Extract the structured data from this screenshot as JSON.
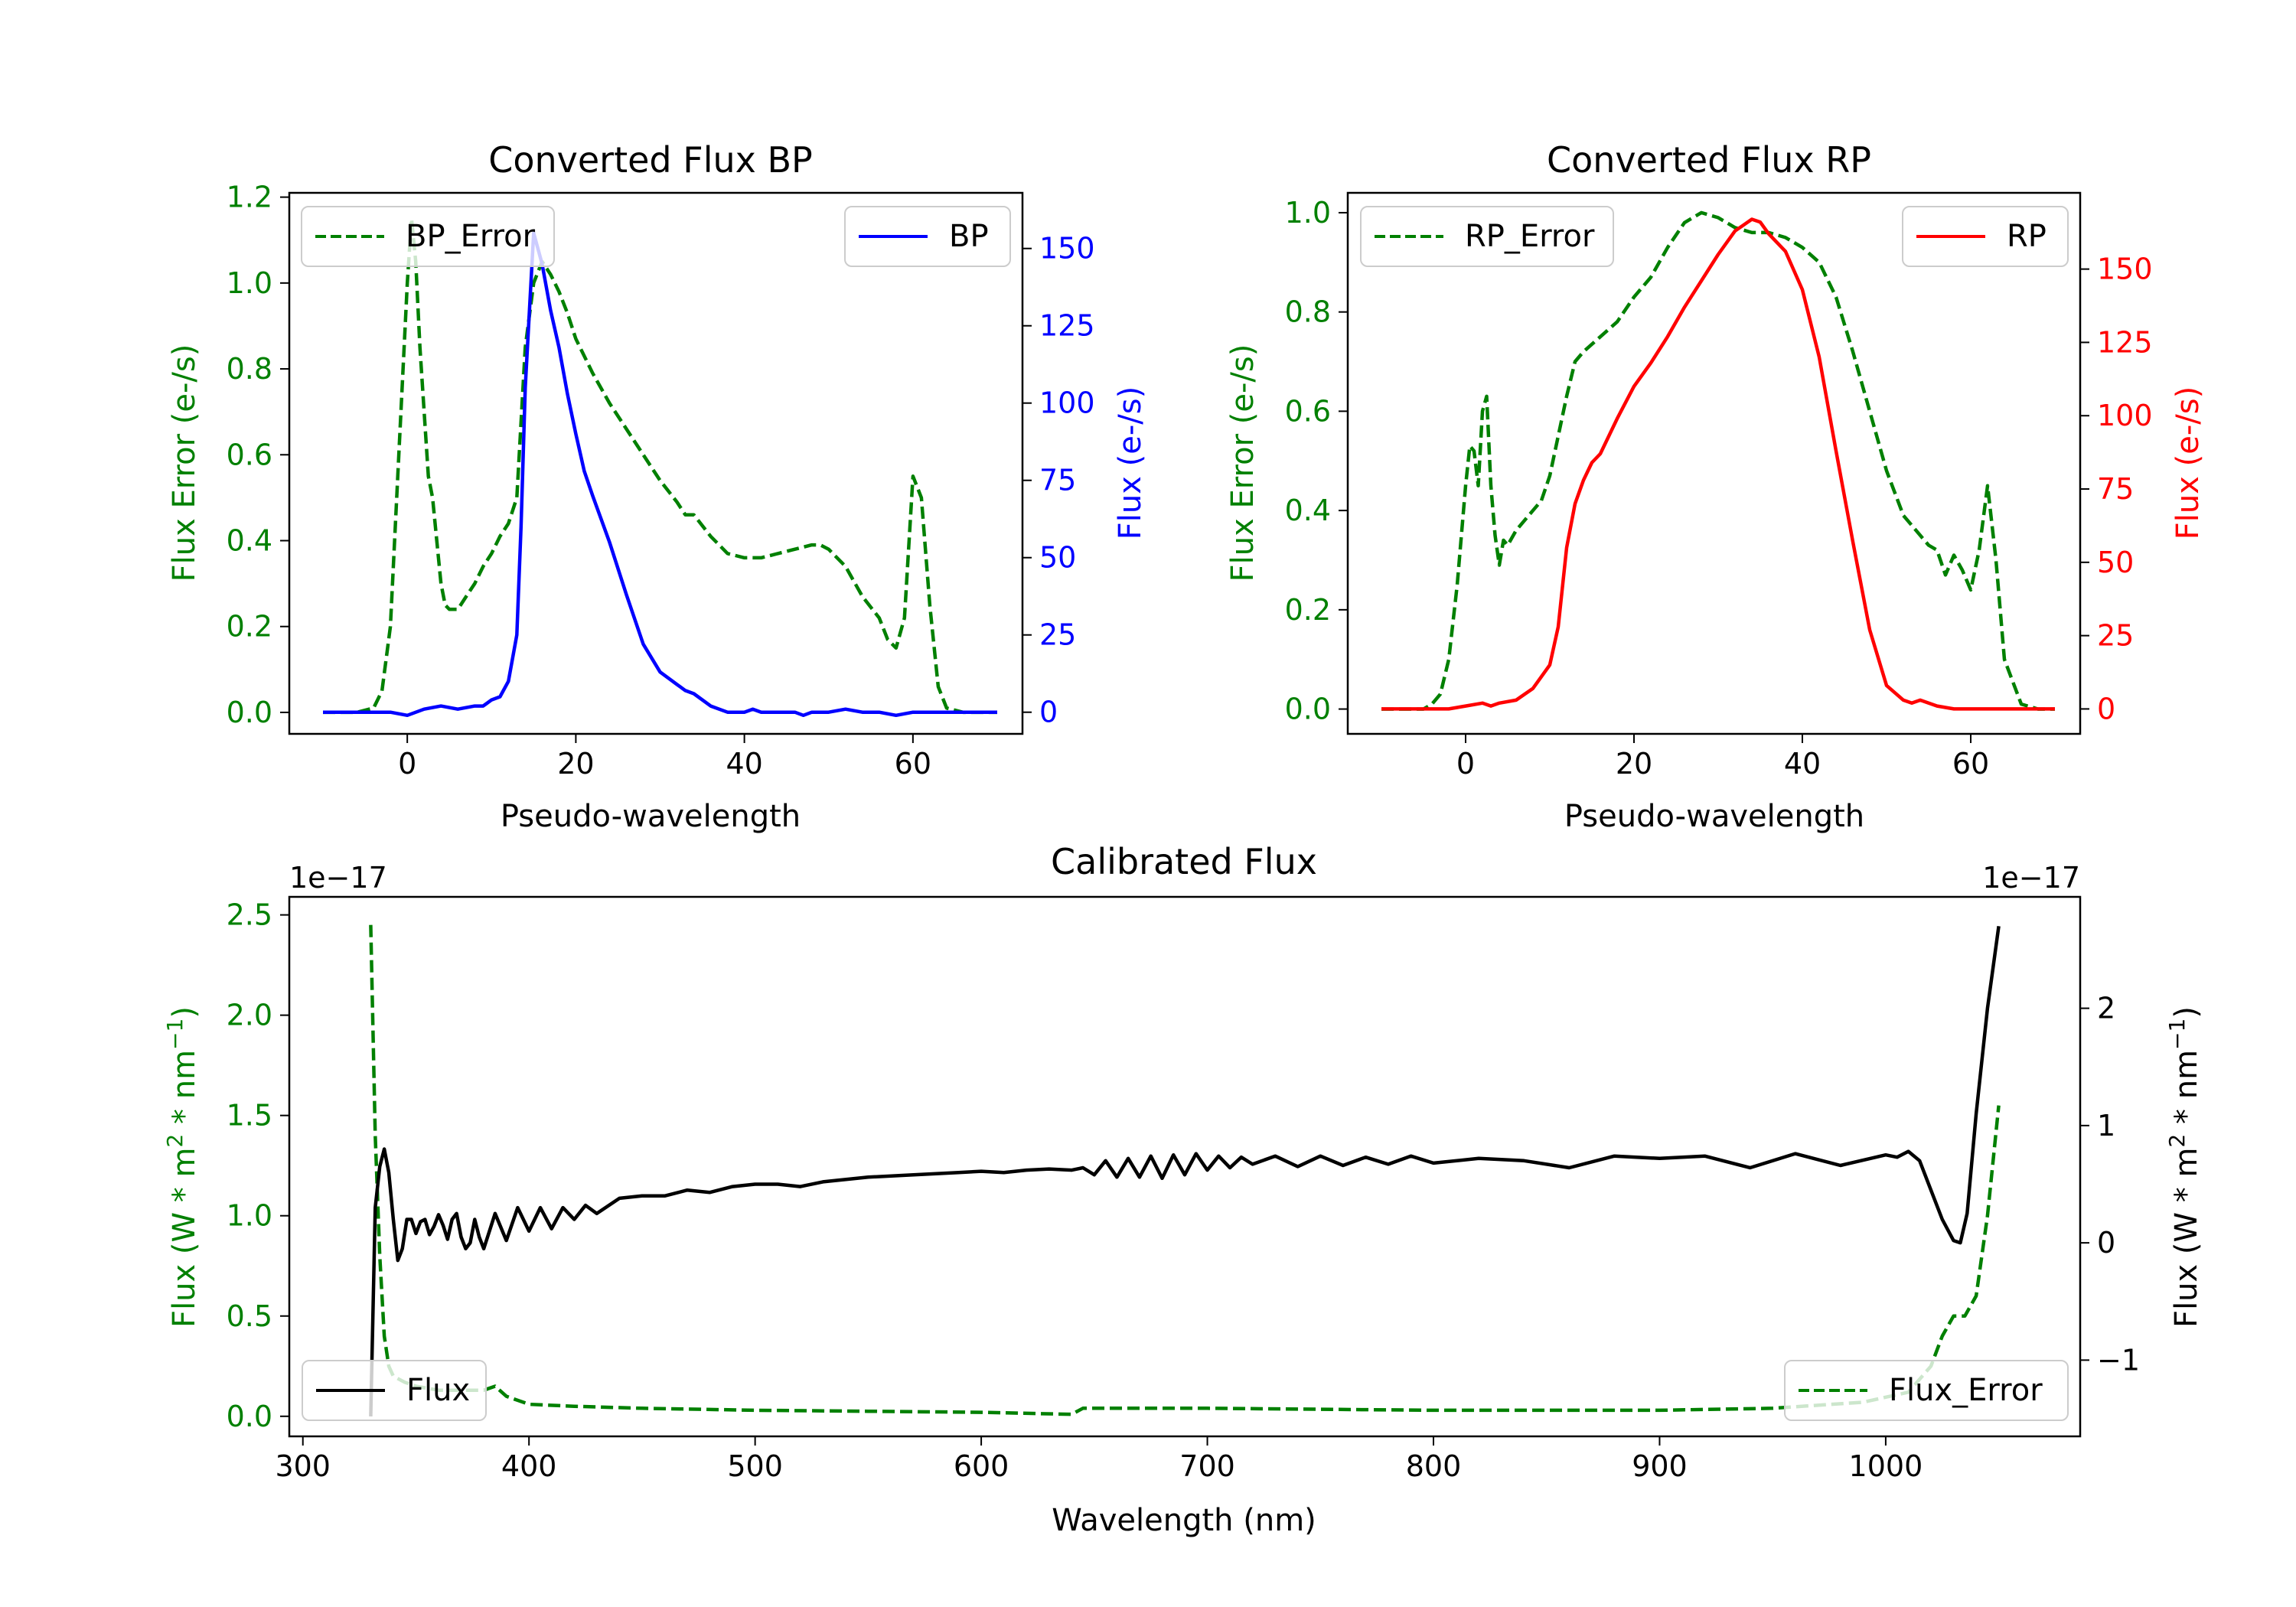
{
  "colors": {
    "bp_error": "#008000",
    "bp": "#0000ff",
    "rp_error": "#008000",
    "rp": "#ff0000",
    "calibrated_flux": "#000000",
    "calibrated_flux_error": "#008000"
  },
  "chart_data": [
    {
      "id": "bp",
      "type": "line",
      "title": "Converted Flux BP",
      "xlabel": "Pseudo-wavelength",
      "ylabel_left": "Flux Error (e-/s)",
      "ylabel_right": "Flux (e-/s)",
      "xlim": [
        -14,
        73
      ],
      "ylim_left": [
        -0.05,
        1.21
      ],
      "ylim_right": [
        -7,
        168
      ],
      "x_ticks": [
        0,
        20,
        40,
        60
      ],
      "x_tick_labels": [
        "0",
        "20",
        "40",
        "60"
      ],
      "y_left_ticks": [
        0.0,
        0.2,
        0.4,
        0.6,
        0.8,
        1.0,
        1.2
      ],
      "y_left_tick_labels": [
        "0.0",
        "0.2",
        "0.4",
        "0.6",
        "0.8",
        "1.0",
        "1.2"
      ],
      "y_right_ticks": [
        0,
        25,
        50,
        75,
        100,
        125,
        150
      ],
      "y_right_tick_labels": [
        "0",
        "25",
        "50",
        "75",
        "100",
        "125",
        "150"
      ],
      "legend_left": {
        "label": "BP_Error",
        "location": "upper left"
      },
      "legend_right": {
        "label": "BP",
        "location": "upper right"
      },
      "series": [
        {
          "name": "BP_Error",
          "axis": "left",
          "style": "dashed",
          "x": [
            -10,
            -6,
            -4,
            -3,
            -2,
            -1,
            0,
            0.5,
            1,
            1.5,
            2,
            2.5,
            3,
            3.5,
            4,
            4.5,
            5,
            6,
            7,
            8,
            9,
            10,
            11,
            12,
            13,
            14,
            15,
            16,
            17,
            18,
            19,
            20,
            22,
            24,
            26,
            28,
            30,
            32,
            33,
            34,
            36,
            38,
            40,
            42,
            44,
            46,
            48,
            49,
            50,
            52,
            54,
            56,
            57,
            58,
            59,
            60,
            61,
            62,
            63,
            64,
            66,
            68,
            70
          ],
          "y": [
            0.0,
            0.0,
            0.01,
            0.05,
            0.2,
            0.6,
            1.0,
            1.15,
            1.05,
            0.85,
            0.7,
            0.55,
            0.5,
            0.4,
            0.3,
            0.25,
            0.24,
            0.24,
            0.27,
            0.3,
            0.34,
            0.37,
            0.41,
            0.44,
            0.5,
            0.85,
            1.0,
            1.05,
            1.02,
            0.98,
            0.93,
            0.87,
            0.79,
            0.72,
            0.66,
            0.6,
            0.54,
            0.49,
            0.46,
            0.46,
            0.41,
            0.37,
            0.36,
            0.36,
            0.37,
            0.38,
            0.39,
            0.39,
            0.38,
            0.34,
            0.27,
            0.22,
            0.17,
            0.15,
            0.22,
            0.55,
            0.5,
            0.25,
            0.06,
            0.01,
            0.0,
            0.0,
            0.0
          ]
        },
        {
          "name": "BP",
          "axis": "right",
          "style": "solid",
          "x": [
            -10,
            -6,
            -4,
            -2,
            0,
            2,
            4,
            6,
            8,
            9,
            10,
            11,
            12,
            13,
            13.5,
            14,
            15,
            16,
            17,
            18,
            19,
            20,
            21,
            22,
            24,
            26,
            28,
            30,
            32,
            33,
            34,
            36,
            38,
            40,
            41,
            42,
            44,
            46,
            47,
            48,
            50,
            52,
            54,
            56,
            58,
            60,
            62,
            64,
            66,
            68,
            70
          ],
          "y": [
            0,
            0,
            0,
            0,
            -1,
            1,
            2,
            1,
            2,
            2,
            4,
            5,
            10,
            25,
            60,
            105,
            155,
            145,
            130,
            118,
            103,
            90,
            78,
            70,
            55,
            38,
            22,
            13,
            9,
            7,
            6,
            2,
            0,
            0,
            1,
            0,
            0,
            0,
            -1,
            0,
            0,
            1,
            0,
            0,
            -1,
            0,
            0,
            0,
            0,
            0,
            0
          ]
        }
      ]
    },
    {
      "id": "rp",
      "type": "line",
      "title": "Converted Flux RP",
      "xlabel": "Pseudo-wavelength",
      "ylabel_left": "Flux Error (e-/s)",
      "ylabel_right": "Flux (e-/s)",
      "xlim": [
        -14,
        73
      ],
      "ylim_left": [
        -0.05,
        1.04
      ],
      "ylim_right": [
        -8.5,
        176
      ],
      "x_ticks": [
        0,
        20,
        40,
        60
      ],
      "x_tick_labels": [
        "0",
        "20",
        "40",
        "60"
      ],
      "y_left_ticks": [
        0.0,
        0.2,
        0.4,
        0.6,
        0.8,
        1.0
      ],
      "y_left_tick_labels": [
        "0.0",
        "0.2",
        "0.4",
        "0.6",
        "0.8",
        "1.0"
      ],
      "y_right_ticks": [
        0,
        25,
        50,
        75,
        100,
        125,
        150
      ],
      "y_right_tick_labels": [
        "0",
        "25",
        "50",
        "75",
        "100",
        "125",
        "150"
      ],
      "legend_left": {
        "label": "RP_Error",
        "location": "upper left"
      },
      "legend_right": {
        "label": "RP",
        "location": "upper right"
      },
      "series": [
        {
          "name": "RP_Error",
          "axis": "left",
          "style": "dashed",
          "x": [
            -10,
            -6,
            -5,
            -4,
            -3,
            -2,
            -1,
            0,
            0.5,
            1,
            1.5,
            2,
            2.5,
            3,
            3.5,
            4,
            4.5,
            5,
            6,
            7,
            8,
            9,
            10,
            11,
            12,
            13,
            14,
            16,
            18,
            20,
            22,
            24,
            26,
            28,
            30,
            32,
            34,
            36,
            38,
            40,
            42,
            44,
            46,
            48,
            50,
            52,
            54,
            55,
            56,
            57,
            58,
            59,
            60,
            61,
            62,
            63,
            64,
            66,
            68,
            70
          ],
          "y": [
            0.0,
            0.0,
            0.0,
            0.01,
            0.03,
            0.1,
            0.25,
            0.45,
            0.53,
            0.52,
            0.45,
            0.6,
            0.63,
            0.45,
            0.35,
            0.29,
            0.34,
            0.33,
            0.36,
            0.38,
            0.4,
            0.42,
            0.47,
            0.55,
            0.63,
            0.7,
            0.72,
            0.75,
            0.78,
            0.83,
            0.87,
            0.93,
            0.98,
            1.0,
            0.99,
            0.97,
            0.96,
            0.96,
            0.95,
            0.93,
            0.9,
            0.83,
            0.72,
            0.6,
            0.48,
            0.39,
            0.35,
            0.33,
            0.32,
            0.27,
            0.31,
            0.28,
            0.24,
            0.32,
            0.45,
            0.3,
            0.1,
            0.01,
            0.0,
            0.0
          ]
        },
        {
          "name": "RP",
          "axis": "right",
          "style": "solid",
          "x": [
            -10,
            -6,
            -4,
            -2,
            0,
            2,
            3,
            4,
            6,
            8,
            10,
            11,
            12,
            13,
            14,
            15,
            16,
            18,
            20,
            22,
            24,
            26,
            28,
            30,
            32,
            33,
            34,
            35,
            36,
            38,
            40,
            42,
            44,
            46,
            48,
            50,
            52,
            53,
            54,
            56,
            58,
            60,
            62,
            66,
            70
          ],
          "y": [
            0,
            0,
            0,
            0,
            1,
            2,
            1,
            2,
            3,
            7,
            15,
            28,
            55,
            70,
            78,
            84,
            87,
            99,
            110,
            118,
            127,
            137,
            146,
            155,
            163,
            165,
            167,
            166,
            162,
            156,
            143,
            120,
            88,
            57,
            27,
            8,
            3,
            2,
            3,
            1,
            0,
            0,
            0,
            0,
            0
          ]
        }
      ]
    },
    {
      "id": "calibrated",
      "type": "line",
      "title": "Calibrated Flux",
      "xlabel": "Wavelength (nm)",
      "ylabel_left": "Flux (W * m^2 * nm^-1)",
      "ylabel_right": "Flux (W * m^2 * nm^-1)",
      "ylabel_left_parts": [
        "Flux (W * m",
        "2",
        " * nm",
        "−1",
        ")"
      ],
      "ylabel_right_parts": [
        "Flux (W * m",
        "2",
        " * nm",
        "−1",
        ")"
      ],
      "offset_left": "1e−17",
      "offset_right": "1e−17",
      "xlim": [
        294,
        1086
      ],
      "ylim_left": [
        -0.1,
        2.59
      ],
      "ylim_right": [
        -1.65,
        2.95
      ],
      "x_ticks": [
        300,
        400,
        500,
        600,
        700,
        800,
        900,
        1000
      ],
      "x_tick_labels": [
        "300",
        "400",
        "500",
        "600",
        "700",
        "800",
        "900",
        "1000"
      ],
      "y_left_ticks": [
        0.0,
        0.5,
        1.0,
        1.5,
        2.0,
        2.5
      ],
      "y_left_tick_labels": [
        "0.0",
        "0.5",
        "1.0",
        "1.5",
        "2.0",
        "2.5"
      ],
      "y_right_ticks": [
        -1,
        0,
        1,
        2
      ],
      "y_right_tick_labels": [
        "−1",
        "0",
        "1",
        "2"
      ],
      "legend_left": {
        "label": "Flux",
        "location": "lower left"
      },
      "legend_right": {
        "label": "Flux_Error",
        "location": "lower right"
      },
      "series": [
        {
          "name": "Flux_Error",
          "axis": "left",
          "style": "dashed",
          "x": [
            330,
            332,
            334,
            336,
            338,
            340,
            345,
            350,
            360,
            370,
            380,
            385,
            390,
            400,
            420,
            450,
            500,
            550,
            600,
            640,
            645,
            700,
            800,
            900,
            950,
            990,
            1010,
            1020,
            1025,
            1030,
            1035,
            1040,
            1045,
            1050
          ],
          "y": [
            2.45,
            1.4,
            0.8,
            0.4,
            0.25,
            0.2,
            0.17,
            0.15,
            0.13,
            0.13,
            0.13,
            0.15,
            0.1,
            0.06,
            0.05,
            0.04,
            0.03,
            0.025,
            0.02,
            0.01,
            0.04,
            0.04,
            0.03,
            0.03,
            0.04,
            0.07,
            0.12,
            0.25,
            0.4,
            0.5,
            0.5,
            0.6,
            1.0,
            1.55
          ]
        },
        {
          "name": "Flux",
          "axis": "right",
          "style": "solid",
          "x": [
            330,
            332,
            334,
            336,
            338,
            340,
            342,
            344,
            346,
            348,
            350,
            352,
            354,
            356,
            358,
            360,
            362,
            364,
            366,
            368,
            370,
            372,
            374,
            376,
            378,
            380,
            385,
            390,
            395,
            400,
            405,
            410,
            415,
            420,
            425,
            430,
            440,
            450,
            460,
            470,
            480,
            490,
            500,
            510,
            520,
            530,
            550,
            570,
            590,
            600,
            610,
            620,
            630,
            640,
            645,
            650,
            655,
            660,
            665,
            670,
            675,
            680,
            685,
            690,
            695,
            700,
            705,
            710,
            715,
            720,
            730,
            740,
            750,
            760,
            770,
            780,
            790,
            800,
            820,
            840,
            860,
            880,
            900,
            920,
            940,
            960,
            980,
            1000,
            1005,
            1010,
            1015,
            1020,
            1025,
            1030,
            1033,
            1036,
            1040,
            1045,
            1050
          ],
          "y": [
            -1.48,
            0.3,
            0.65,
            0.8,
            0.6,
            0.2,
            -0.15,
            -0.05,
            0.2,
            0.2,
            0.08,
            0.18,
            0.2,
            0.07,
            0.14,
            0.24,
            0.15,
            0.03,
            0.2,
            0.25,
            0.05,
            -0.05,
            0.0,
            0.2,
            0.05,
            -0.05,
            0.25,
            0.02,
            0.3,
            0.1,
            0.3,
            0.12,
            0.3,
            0.2,
            0.32,
            0.25,
            0.38,
            0.4,
            0.4,
            0.45,
            0.43,
            0.48,
            0.5,
            0.5,
            0.48,
            0.52,
            0.56,
            0.58,
            0.6,
            0.61,
            0.6,
            0.62,
            0.63,
            0.62,
            0.64,
            0.58,
            0.7,
            0.56,
            0.72,
            0.56,
            0.74,
            0.55,
            0.75,
            0.58,
            0.76,
            0.62,
            0.74,
            0.64,
            0.73,
            0.67,
            0.74,
            0.65,
            0.74,
            0.66,
            0.73,
            0.67,
            0.74,
            0.68,
            0.72,
            0.7,
            0.64,
            0.74,
            0.72,
            0.74,
            0.64,
            0.76,
            0.66,
            0.75,
            0.73,
            0.78,
            0.7,
            0.45,
            0.2,
            0.02,
            0.0,
            0.25,
            1.1,
            2.0,
            2.7
          ]
        }
      ]
    }
  ]
}
